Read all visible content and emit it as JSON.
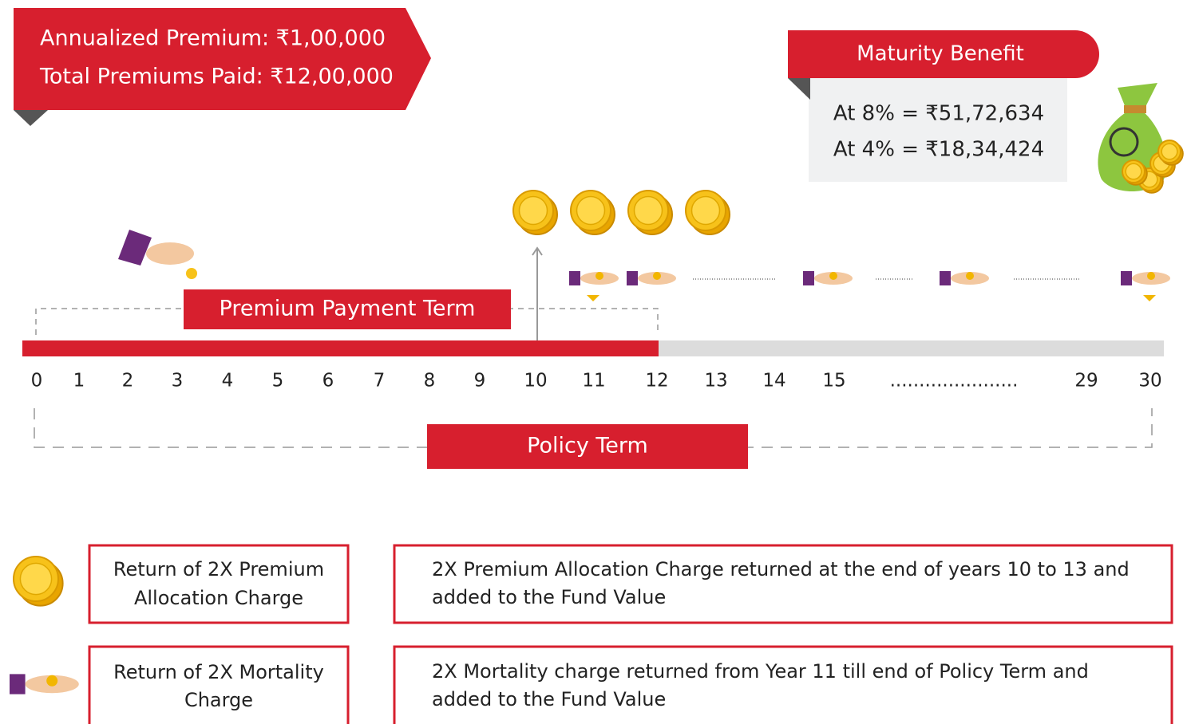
{
  "header": {
    "lines": [
      "Annualized Premium: ₹1,00,000",
      "Total Premiums Paid: ₹12,00,000"
    ]
  },
  "maturity_benefit": {
    "title": "Maturity Benefit",
    "lines": [
      "At 8% = ₹51,72,634",
      "At 4% = ₹18,34,424"
    ]
  },
  "timeline": {
    "premium_payment_term": "Premium Payment Term",
    "policy_term": "Policy Term",
    "years": [
      "0",
      "1",
      "2",
      "3",
      "4",
      "5",
      "6",
      "7",
      "8",
      "9",
      "10",
      "11",
      "12",
      "13",
      "14",
      "15",
      "......................",
      "29",
      "30"
    ]
  },
  "legend": [
    {
      "label_lines": [
        "Return of 2X Premium",
        "Allocation Charge"
      ],
      "description_lines": [
        "2X Premium Allocation Charge returned at the end of years 10 to 13 and",
        "added to the Fund Value"
      ]
    },
    {
      "label_lines": [
        "Return of 2X Mortality",
        "Charge"
      ],
      "description_lines": [
        "2X Mortality charge returned from Year 11 till end of Policy Term and",
        "added to the Fund Value"
      ]
    }
  ]
}
